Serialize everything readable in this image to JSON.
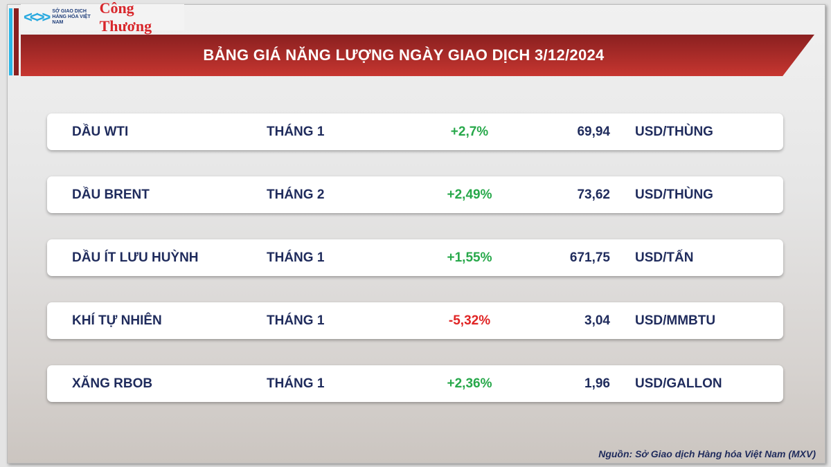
{
  "logo": {
    "org": "SỞ GIAO DỊCH HÀNG HÓA VIỆT NAM",
    "paper": "Công Thương"
  },
  "title": "BẢNG GIÁ NĂNG LƯỢNG NGÀY GIAO DỊCH 3/12/2024",
  "colors": {
    "up": "#27a84a",
    "down": "#e02424",
    "text": "#1f2b5c",
    "banner": "#b32e2a"
  },
  "rows": [
    {
      "name": "DẦU WTI",
      "month": "THÁNG 1",
      "change": "+2,7%",
      "direction": "up",
      "price": "69,94",
      "unit": "USD/THÙNG"
    },
    {
      "name": "DẦU BRENT",
      "month": "THÁNG 2",
      "change": "+2,49%",
      "direction": "up",
      "price": "73,62",
      "unit": "USD/THÙNG"
    },
    {
      "name": "DẦU ÍT LƯU HUỲNH",
      "month": "THÁNG 1",
      "change": "+1,55%",
      "direction": "up",
      "price": "671,75",
      "unit": "USD/TẤN"
    },
    {
      "name": "KHÍ TỰ NHIÊN",
      "month": "THÁNG 1",
      "change": "-5,32%",
      "direction": "down",
      "price": "3,04",
      "unit": "USD/MMBTU"
    },
    {
      "name": "XĂNG RBOB",
      "month": "THÁNG 1",
      "change": "+2,36%",
      "direction": "up",
      "price": "1,96",
      "unit": "USD/GALLON"
    }
  ],
  "source": "Nguồn: Sở Giao dịch Hàng hóa Việt Nam (MXV)"
}
